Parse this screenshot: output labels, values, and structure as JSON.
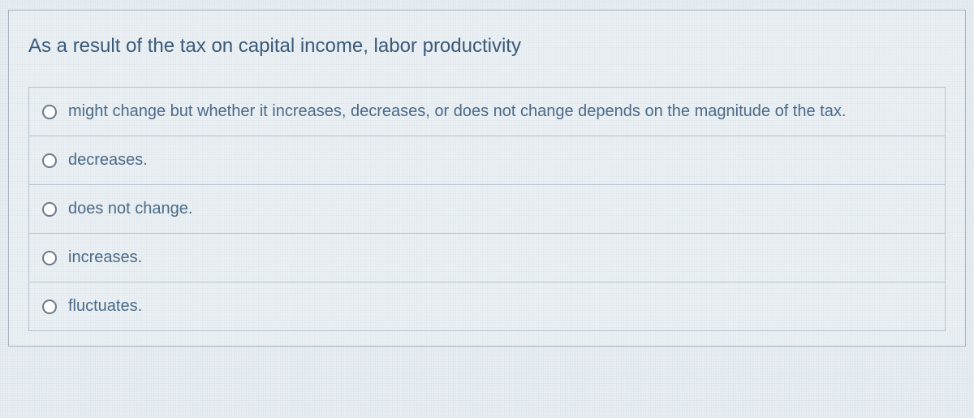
{
  "question": {
    "prompt": "As a result of the tax on capital income, labor productivity",
    "text_color": "#3a5a7a",
    "border_color": "#a8b4c0",
    "background_color": "#e8eef2",
    "option_border_color": "#b8c4cf",
    "options": [
      {
        "label": "might change but whether it increases, decreases, or does not change depends on the magnitude of the tax.",
        "selected": false
      },
      {
        "label": "decreases.",
        "selected": false
      },
      {
        "label": "does not change.",
        "selected": false
      },
      {
        "label": "increases.",
        "selected": false
      },
      {
        "label": "fluctuates.",
        "selected": false
      }
    ]
  }
}
